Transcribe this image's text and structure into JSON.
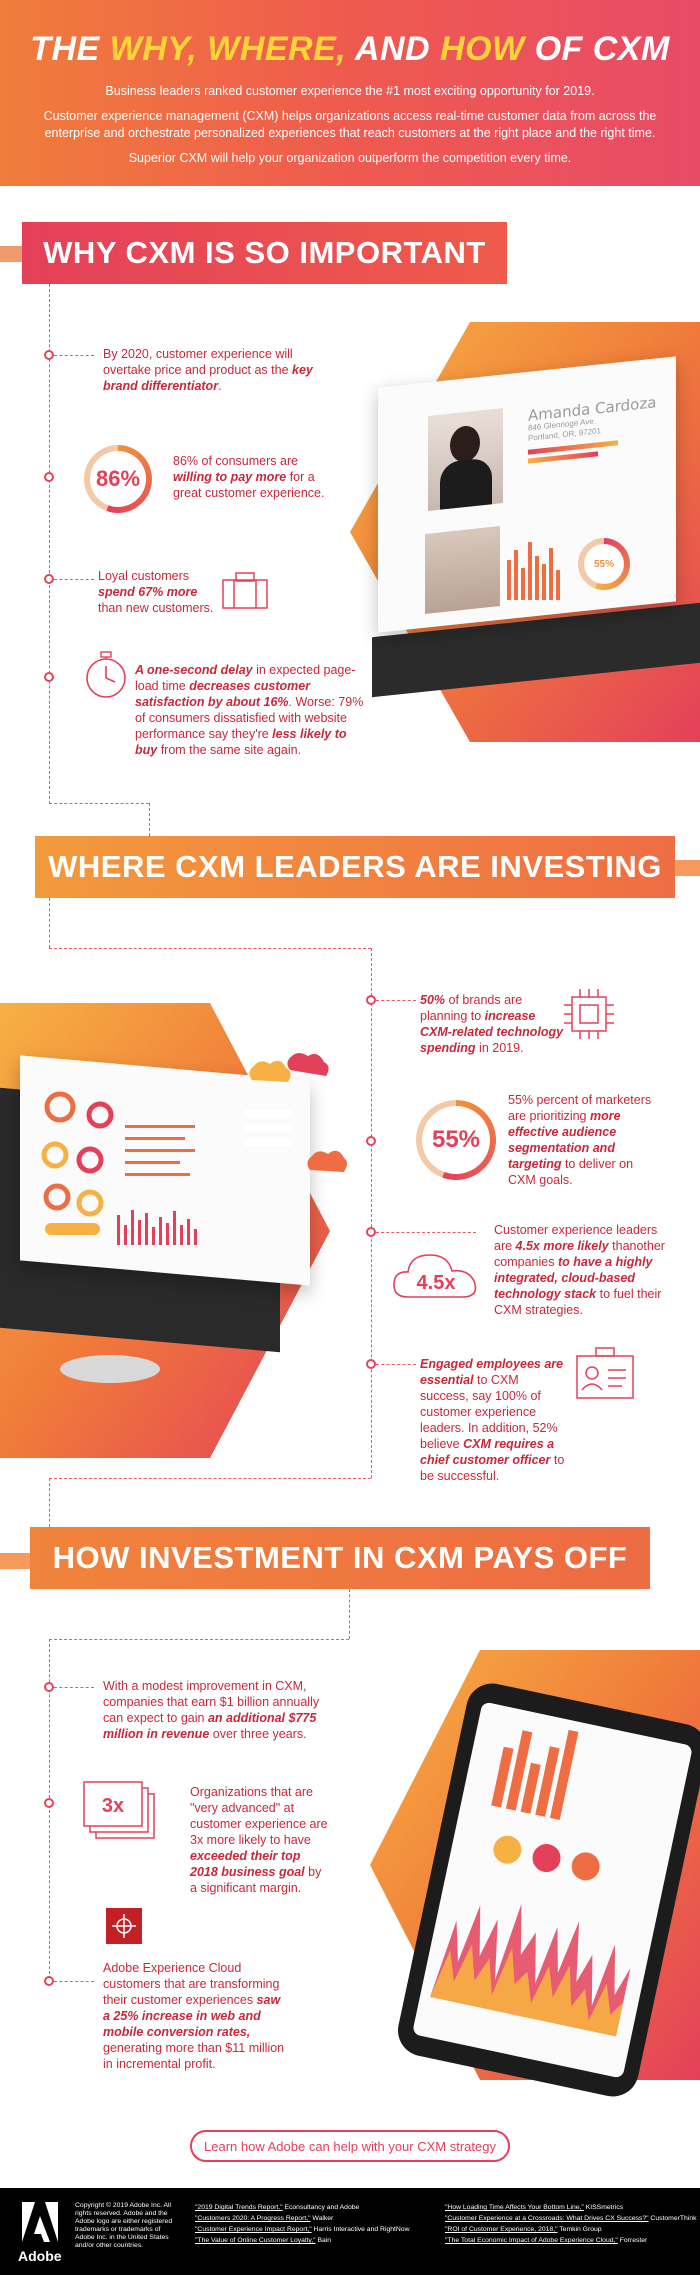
{
  "header": {
    "title_parts": [
      "THE ",
      "WHY, WHERE,",
      " AND ",
      "HOW",
      " OF CXM"
    ],
    "p1": "Business leaders ranked customer experience the #1 most exciting opportunity for 2019.",
    "p2": "Customer experience management (CXM) helps organizations access real-time customer data from across the enterprise and orchestrate personalized experiences that reach customers at the right place and the right time.",
    "p3": "Superior CXM will help your organization outperform the competition every time."
  },
  "sections": {
    "why": "WHY CXM IS SO IMPORTANT",
    "where": "WHERE CXM LEADERS ARE INVESTING",
    "how": "HOW INVESTMENT IN CXM PAYS OFF"
  },
  "why_items": [
    {
      "pre": "By 2020, customer experience will overtake price and product as the ",
      "em": "key brand differentiator",
      "post": "."
    },
    {
      "stat": "86%",
      "pre": "86% of consumers are ",
      "em": "willing to pay more",
      "post": " for a great customer experience."
    },
    {
      "pre": "Loyal customers ",
      "em": "spend 67% more",
      "post": " than new customers."
    },
    {
      "em": "A one-second delay",
      "pre2": " in expected page-load time ",
      "em2": "decreases customer satisfaction by about 16%",
      "mid": ". Worse: 79% of consumers dissatisfied with website performance say they're ",
      "em3": "less likely to buy",
      "post": " from the same site again."
    }
  ],
  "profile_card": {
    "name": "Amanda Cardoza",
    "address1": "846 Glennoge Ave.",
    "address2": "Portland, OR, 97201",
    "donut": "55%"
  },
  "where_items": [
    {
      "em": "50%",
      "pre": " of brands are planning to ",
      "em2": "increase CXM-related technology spending",
      "post": " in 2019."
    },
    {
      "stat": "55%",
      "pre": "55% percent of marketers are prioritizing ",
      "em": "more effective audience segmentation and targeting",
      "post": " to deliver on CXM goals."
    },
    {
      "stat": "4.5x",
      "pre": "Customer experience leaders are ",
      "em": "4.5x more likely",
      "mid": " thanother companies ",
      "em2": "to have a highly integrated, cloud-based technology stack",
      "post": " to fuel their CXM strategies."
    },
    {
      "em": "Engaged employees are essential",
      "pre": " to CXM success, say 100% of customer experience leaders. In addition, 52% believe ",
      "em2": "CXM requires a chief customer officer",
      "post": " to be successful."
    }
  ],
  "how_items": [
    {
      "pre": "With a modest improvement in CXM, companies that earn $1 billion annually can expect to gain ",
      "em": "an additional $775 million in revenue",
      "post": " over three years."
    },
    {
      "stat": "3x",
      "pre": "Organizations that are \"very advanced\" at customer experience are 3x more likely to have ",
      "em": "exceeded their top 2018 business goal",
      "post": " by a significant margin."
    },
    {
      "pre": "Adobe Experience Cloud customers that are transforming their customer experiences ",
      "em": "saw a 25% increase in web and mobile conversion rates,",
      "post": " generating more than $11 million in incremental profit."
    }
  ],
  "cta": "Learn how Adobe can help with your CXM strategy",
  "footer": {
    "brand": "Adobe",
    "copyright": "Copyright © 2019 Adobe Inc. All rights reserved. Adobe and the Adobe logo are either registered trademarks or trademarks of Adobe Inc. in the United States and/or other countries.",
    "refs_left": [
      {
        "title": "\"2019 Digital Trends Report,\"",
        "src": " Econsultancy and Adobe"
      },
      {
        "title": "\"Customers 2020: A Progress Report,\"",
        "src": " Walker"
      },
      {
        "title": "\"Customer Experience Impact Report,\"",
        "src": " Harris Interactive and RightNow"
      },
      {
        "title": "\"The Value of Online Customer Loyalty,\"",
        "src": " Bain"
      }
    ],
    "refs_right": [
      {
        "title": "\"How Loading Time Affects Your Bottom Line,\"",
        "src": " KISSmetrics"
      },
      {
        "title": "\"Customer Experience at a Crossroads: What Drives CX Success?\"",
        "src": " CustomerThink"
      },
      {
        "title": "\"ROI of Customer Experience, 2018,\"",
        "src": " Temkin Group"
      },
      {
        "title": "\"The Total Economic Impact of Adobe Experience Cloud,\"",
        "src": " Forrester"
      }
    ]
  },
  "colors": {
    "red": "#e4405a",
    "orange": "#f2913c",
    "yellow": "#ffd43a"
  }
}
